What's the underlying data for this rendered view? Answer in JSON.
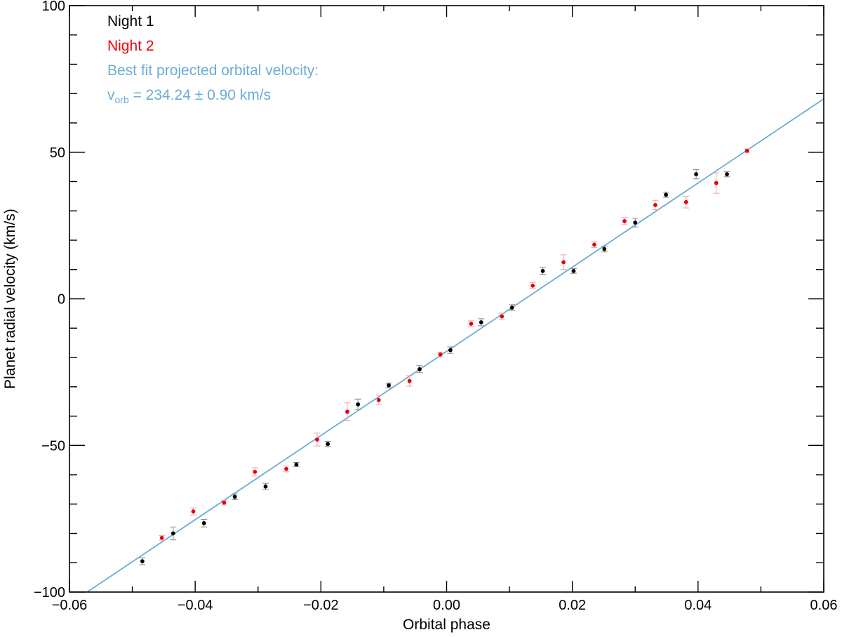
{
  "chart_data": {
    "type": "scatter",
    "title": "",
    "xlabel": "Orbital phase",
    "ylabel": "Planet radial velocity (km/s)",
    "xlim": [
      -0.06,
      0.06
    ],
    "ylim": [
      -100,
      100
    ],
    "x_ticks": [
      -0.06,
      -0.04,
      -0.02,
      0.0,
      0.02,
      0.04,
      0.06
    ],
    "x_tick_labels": [
      "−0.06",
      "−0.04",
      "−0.02",
      "0.00",
      "0.02",
      "0.04",
      "0.06"
    ],
    "y_ticks": [
      -100,
      -50,
      0,
      50,
      100
    ],
    "y_tick_labels": [
      "−100",
      "−50",
      "0",
      "50",
      "100"
    ],
    "grid": false,
    "legend_position": "top-left",
    "series": [
      {
        "name": "Night 1",
        "color": "#000000",
        "errcolor": "#888888",
        "points": [
          {
            "x": -0.0484,
            "y": -89.5,
            "err": 1.2
          },
          {
            "x": -0.0435,
            "y": -80.0,
            "err": 2.2
          },
          {
            "x": -0.0386,
            "y": -76.5,
            "err": 1.3
          },
          {
            "x": -0.0337,
            "y": -67.5,
            "err": 1.0
          },
          {
            "x": -0.0288,
            "y": -64.0,
            "err": 1.1
          },
          {
            "x": -0.0239,
            "y": -56.5,
            "err": 0.7
          },
          {
            "x": -0.0189,
            "y": -49.5,
            "err": 0.9
          },
          {
            "x": -0.0141,
            "y": -36.0,
            "err": 1.8
          },
          {
            "x": -0.0092,
            "y": -29.5,
            "err": 0.8
          },
          {
            "x": -0.0043,
            "y": -24.0,
            "err": 1.2
          },
          {
            "x": 0.0006,
            "y": -17.5,
            "err": 1.1
          },
          {
            "x": 0.0055,
            "y": -8.0,
            "err": 1.2
          },
          {
            "x": 0.0104,
            "y": -3.0,
            "err": 1.0
          },
          {
            "x": 0.0153,
            "y": 9.5,
            "err": 1.2
          },
          {
            "x": 0.0202,
            "y": 9.5,
            "err": 0.8
          },
          {
            "x": 0.0251,
            "y": 17.0,
            "err": 1.0
          },
          {
            "x": 0.03,
            "y": 26.0,
            "err": 1.5
          },
          {
            "x": 0.0349,
            "y": 35.5,
            "err": 0.9
          },
          {
            "x": 0.0397,
            "y": 42.5,
            "err": 1.6
          },
          {
            "x": 0.0446,
            "y": 42.5,
            "err": 0.9
          }
        ]
      },
      {
        "name": "Night 2",
        "color": "#e8000b",
        "errcolor": "#f4a0a8",
        "points": [
          {
            "x": -0.0453,
            "y": -81.5,
            "err": 0.8
          },
          {
            "x": -0.0403,
            "y": -72.5,
            "err": 1.2
          },
          {
            "x": -0.0354,
            "y": -69.5,
            "err": 0.8
          },
          {
            "x": -0.0305,
            "y": -59.0,
            "err": 1.4
          },
          {
            "x": -0.0255,
            "y": -58.0,
            "err": 1.0
          },
          {
            "x": -0.0206,
            "y": -48.0,
            "err": 2.2
          },
          {
            "x": -0.0158,
            "y": -38.5,
            "err": 3.0
          },
          {
            "x": -0.0108,
            "y": -34.5,
            "err": 1.6
          },
          {
            "x": -0.0059,
            "y": -28.0,
            "err": 1.8
          },
          {
            "x": -0.001,
            "y": -19.0,
            "err": 0.8
          },
          {
            "x": 0.0039,
            "y": -8.5,
            "err": 1.0
          },
          {
            "x": 0.0088,
            "y": -6.0,
            "err": 1.1
          },
          {
            "x": 0.0137,
            "y": 4.5,
            "err": 1.0
          },
          {
            "x": 0.0186,
            "y": 12.5,
            "err": 2.5
          },
          {
            "x": 0.0235,
            "y": 18.5,
            "err": 1.0
          },
          {
            "x": 0.0283,
            "y": 26.5,
            "err": 1.2
          },
          {
            "x": 0.0332,
            "y": 32.0,
            "err": 1.6
          },
          {
            "x": 0.0381,
            "y": 33.0,
            "err": 2.0
          },
          {
            "x": 0.0429,
            "y": 39.5,
            "err": 3.5
          },
          {
            "x": 0.0478,
            "y": 50.5,
            "err": 0.6
          }
        ]
      }
    ],
    "fit_line": {
      "color": "#6aadd5",
      "x": [
        -0.0572,
        0.06
      ],
      "y": [
        -100,
        68.2
      ]
    },
    "legend": {
      "entries": [
        {
          "text": "Night 1",
          "color": "#000000"
        },
        {
          "text": "Night 2",
          "color": "#e8000b"
        },
        {
          "text": "Best fit projected orbital velocity:",
          "color": "#6aadd5"
        }
      ],
      "vorb": {
        "v": "v",
        "sub": "orb",
        "rest": " = 234.24 ± 0.90 km/s",
        "color": "#6aadd5"
      }
    }
  }
}
